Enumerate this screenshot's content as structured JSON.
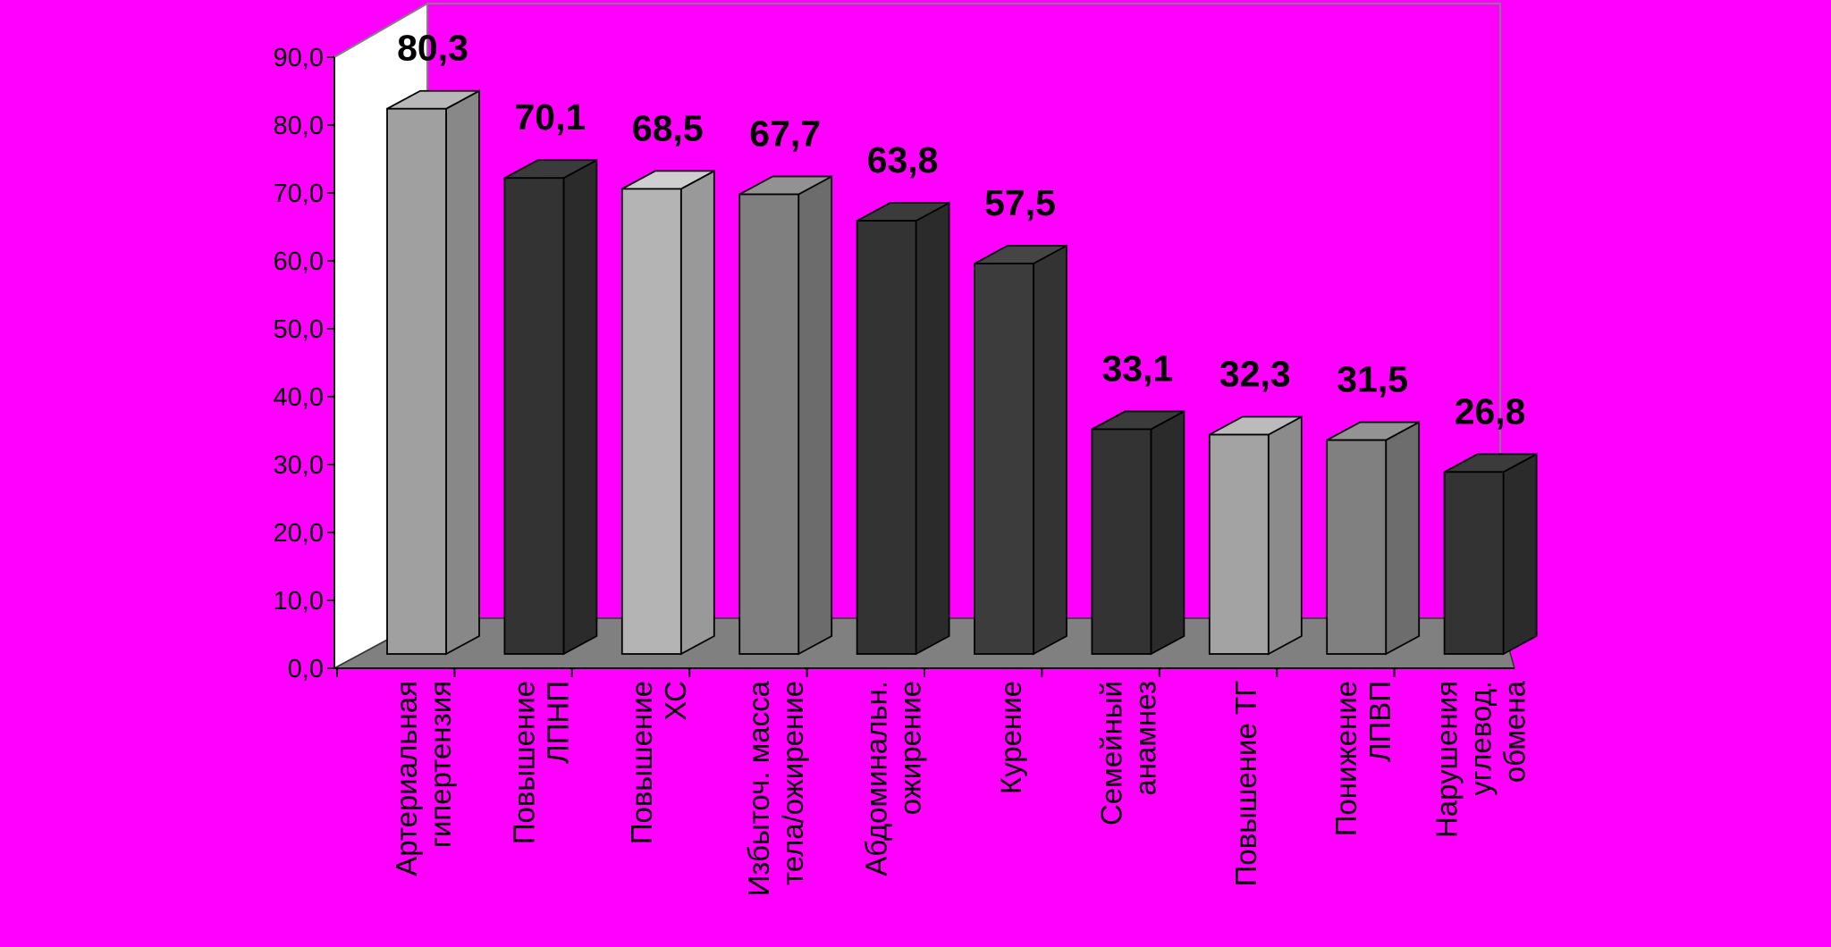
{
  "chart_data": {
    "type": "bar",
    "title": "",
    "xlabel": "",
    "ylabel": "",
    "ylim": [
      0,
      90
    ],
    "yticks": [
      "0,0",
      "10,0",
      "20,0",
      "30,0",
      "40,0",
      "50,0",
      "60,0",
      "70,0",
      "80,0",
      "90,0"
    ],
    "categories": [
      [
        "Артериальная",
        "гипертензия"
      ],
      [
        "Повышение",
        "ЛПНП"
      ],
      [
        "Повышение",
        "ХС"
      ],
      [
        "Избыточ. масса",
        "тела/ожирение"
      ],
      [
        "Абдоминальн.",
        "ожирение"
      ],
      [
        "Курение"
      ],
      [
        "Семейный",
        "анамнез"
      ],
      [
        "Повышение ТГ"
      ],
      [
        "Понижение",
        "ЛПВП"
      ],
      [
        "Нарушения",
        "углевод.",
        "обмена"
      ]
    ],
    "values": [
      80.3,
      70.1,
      68.5,
      67.7,
      63.8,
      57.5,
      33.1,
      32.3,
      31.5,
      26.8
    ],
    "value_labels": [
      "80,3",
      "70,1",
      "68,5",
      "67,7",
      "63,8",
      "57,5",
      "33,1",
      "32,3",
      "31,5",
      "26,8"
    ],
    "bar_colors": [
      "#a0a0a0",
      "#333333",
      "#b4b4b4",
      "#7f7f7f",
      "#333333",
      "#3c3c3c",
      "#333333",
      "#a3a3a3",
      "#808080",
      "#333333"
    ],
    "background": "#ff00ff",
    "wall_color": "#ffffff",
    "floor_color": "#808080",
    "grid": false,
    "legend": "none"
  }
}
